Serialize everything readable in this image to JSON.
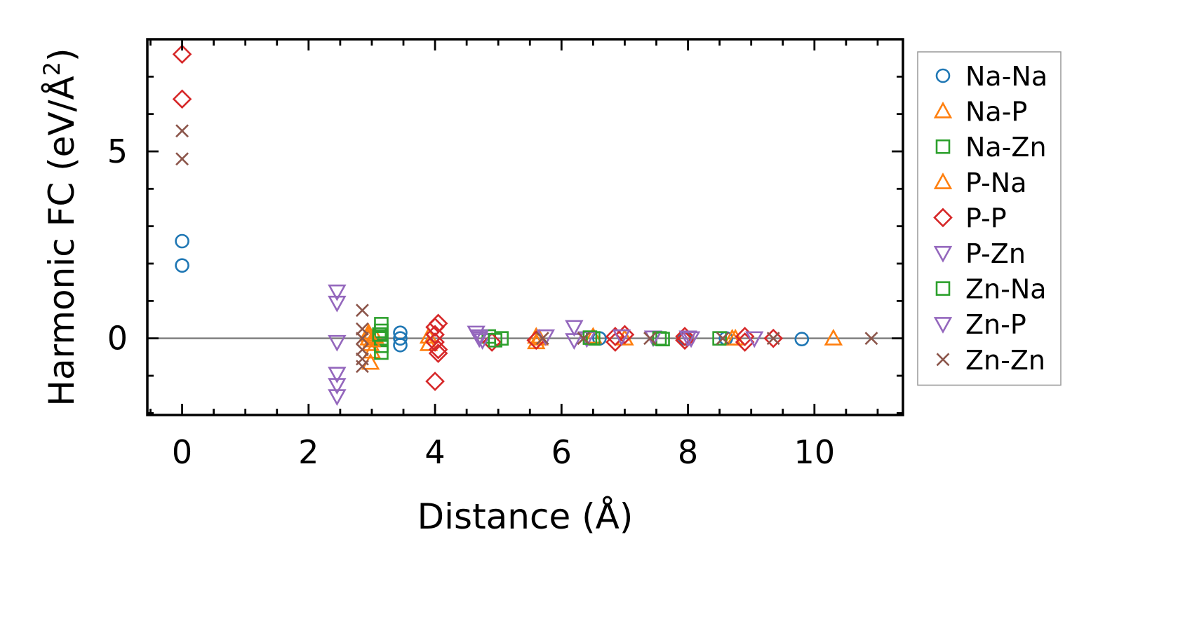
{
  "chart_data": {
    "type": "scatter",
    "title": "",
    "xlabel": "Distance (Å)",
    "ylabel_main": "Harmonic FC (eV/Å",
    "ylabel_sup": "2",
    "ylabel_close": ")",
    "xlim": [
      -0.55,
      11.4
    ],
    "ylim": [
      -2.05,
      8.0
    ],
    "xticks": [
      0,
      2,
      4,
      6,
      8,
      10
    ],
    "xtick_labels": [
      "0",
      "2",
      "4",
      "6",
      "8",
      "10"
    ],
    "yticks": [
      0,
      5
    ],
    "ytick_labels": [
      "0",
      "5"
    ],
    "zero_line": true,
    "grid": false,
    "legend_position": "outside-right",
    "colors": {
      "blue": "#1f77b4",
      "orange": "#ff7f0e",
      "green": "#2ca02c",
      "red": "#d62728",
      "purple": "#9467bd",
      "brown": "#8c564b",
      "zero_line": "#808080"
    },
    "series": [
      {
        "name": "Na-Na",
        "marker": "circle",
        "color": "#1f77b4",
        "points": [
          [
            0,
            2.6
          ],
          [
            0,
            1.95
          ],
          [
            3.45,
            0.15
          ],
          [
            3.45,
            0.0
          ],
          [
            3.45,
            -0.18
          ],
          [
            6.6,
            0.0
          ],
          [
            7.95,
            0.0
          ],
          [
            8.6,
            0.0
          ],
          [
            9.8,
            -0.02
          ]
        ]
      },
      {
        "name": "Na-P",
        "marker": "triangle-up",
        "color": "#ff7f0e",
        "points": [
          [
            2.95,
            0.15
          ],
          [
            2.95,
            0.0
          ],
          [
            2.98,
            -0.15
          ],
          [
            3.0,
            -0.35
          ],
          [
            2.98,
            -0.65
          ],
          [
            3.05,
            0.05
          ],
          [
            3.9,
            0.05
          ],
          [
            3.9,
            -0.15
          ],
          [
            5.6,
            0.05
          ],
          [
            5.6,
            -0.1
          ],
          [
            6.5,
            0.05
          ],
          [
            8.7,
            0.0
          ],
          [
            10.3,
            0.0
          ]
        ]
      },
      {
        "name": "Na-Zn",
        "marker": "square",
        "color": "#2ca02c",
        "points": [
          [
            3.15,
            0.38
          ],
          [
            3.15,
            0.2
          ],
          [
            3.15,
            0.0
          ],
          [
            3.15,
            -0.2
          ],
          [
            3.15,
            -0.38
          ],
          [
            4.85,
            0.05
          ],
          [
            5.05,
            0.0
          ],
          [
            6.5,
            0.0
          ],
          [
            7.6,
            -0.02
          ],
          [
            8.5,
            0.0
          ]
        ]
      },
      {
        "name": "P-Na",
        "marker": "triangle-up",
        "color": "#ff7f0e",
        "points": [
          [
            2.95,
            0.1
          ],
          [
            3.0,
            -0.05
          ],
          [
            5.65,
            0.0
          ],
          [
            7.0,
            0.0
          ],
          [
            8.75,
            0.0
          ]
        ]
      },
      {
        "name": "P-P",
        "marker": "diamond",
        "color": "#d62728",
        "points": [
          [
            0,
            7.6
          ],
          [
            0,
            6.4
          ],
          [
            4.0,
            0.3
          ],
          [
            4.0,
            0.1
          ],
          [
            4.0,
            -0.1
          ],
          [
            4.05,
            -0.3
          ],
          [
            4.05,
            0.4
          ],
          [
            4.05,
            -0.4
          ],
          [
            4.0,
            -1.15
          ],
          [
            4.9,
            -0.1
          ],
          [
            5.6,
            -0.05
          ],
          [
            6.85,
            0.05
          ],
          [
            6.85,
            -0.1
          ],
          [
            7.0,
            0.1
          ],
          [
            7.95,
            0.05
          ],
          [
            7.95,
            -0.05
          ],
          [
            8.9,
            0.05
          ],
          [
            8.9,
            -0.1
          ],
          [
            9.35,
            0.0
          ]
        ]
      },
      {
        "name": "P-Zn",
        "marker": "triangle-down",
        "color": "#9467bd",
        "points": [
          [
            2.45,
            1.25
          ],
          [
            2.45,
            0.95
          ],
          [
            2.45,
            -0.1
          ],
          [
            2.45,
            -0.95
          ],
          [
            2.45,
            -1.25
          ],
          [
            2.45,
            -1.55
          ],
          [
            4.65,
            0.15
          ],
          [
            4.7,
            0.05
          ],
          [
            4.75,
            -0.05
          ],
          [
            5.75,
            0.05
          ],
          [
            6.2,
            0.3
          ],
          [
            6.2,
            -0.05
          ],
          [
            6.4,
            0.0
          ],
          [
            7.45,
            0.02
          ],
          [
            8.05,
            0.0
          ],
          [
            9.05,
            0.0
          ]
        ]
      },
      {
        "name": "Zn-Na",
        "marker": "square",
        "color": "#2ca02c",
        "points": [
          [
            3.12,
            0.1
          ],
          [
            4.95,
            -0.05
          ],
          [
            6.45,
            0.02
          ],
          [
            7.55,
            0.0
          ]
        ]
      },
      {
        "name": "Zn-P",
        "marker": "triangle-down",
        "color": "#9467bd",
        "points": [
          [
            4.7,
            0.0
          ],
          [
            6.95,
            0.05
          ],
          [
            8.0,
            0.02
          ]
        ]
      },
      {
        "name": "Zn-Zn",
        "marker": "x",
        "color": "#8c564b",
        "points": [
          [
            0,
            5.55
          ],
          [
            0,
            4.8
          ],
          [
            2.85,
            0.75
          ],
          [
            2.85,
            0.25
          ],
          [
            2.85,
            0.0
          ],
          [
            2.85,
            -0.3
          ],
          [
            2.85,
            -0.55
          ],
          [
            2.85,
            -0.75
          ],
          [
            5.7,
            0.0
          ],
          [
            6.35,
            0.0
          ],
          [
            7.4,
            0.0
          ],
          [
            8.55,
            0.0
          ],
          [
            9.35,
            0.0
          ],
          [
            10.9,
            0.0
          ]
        ]
      }
    ]
  }
}
